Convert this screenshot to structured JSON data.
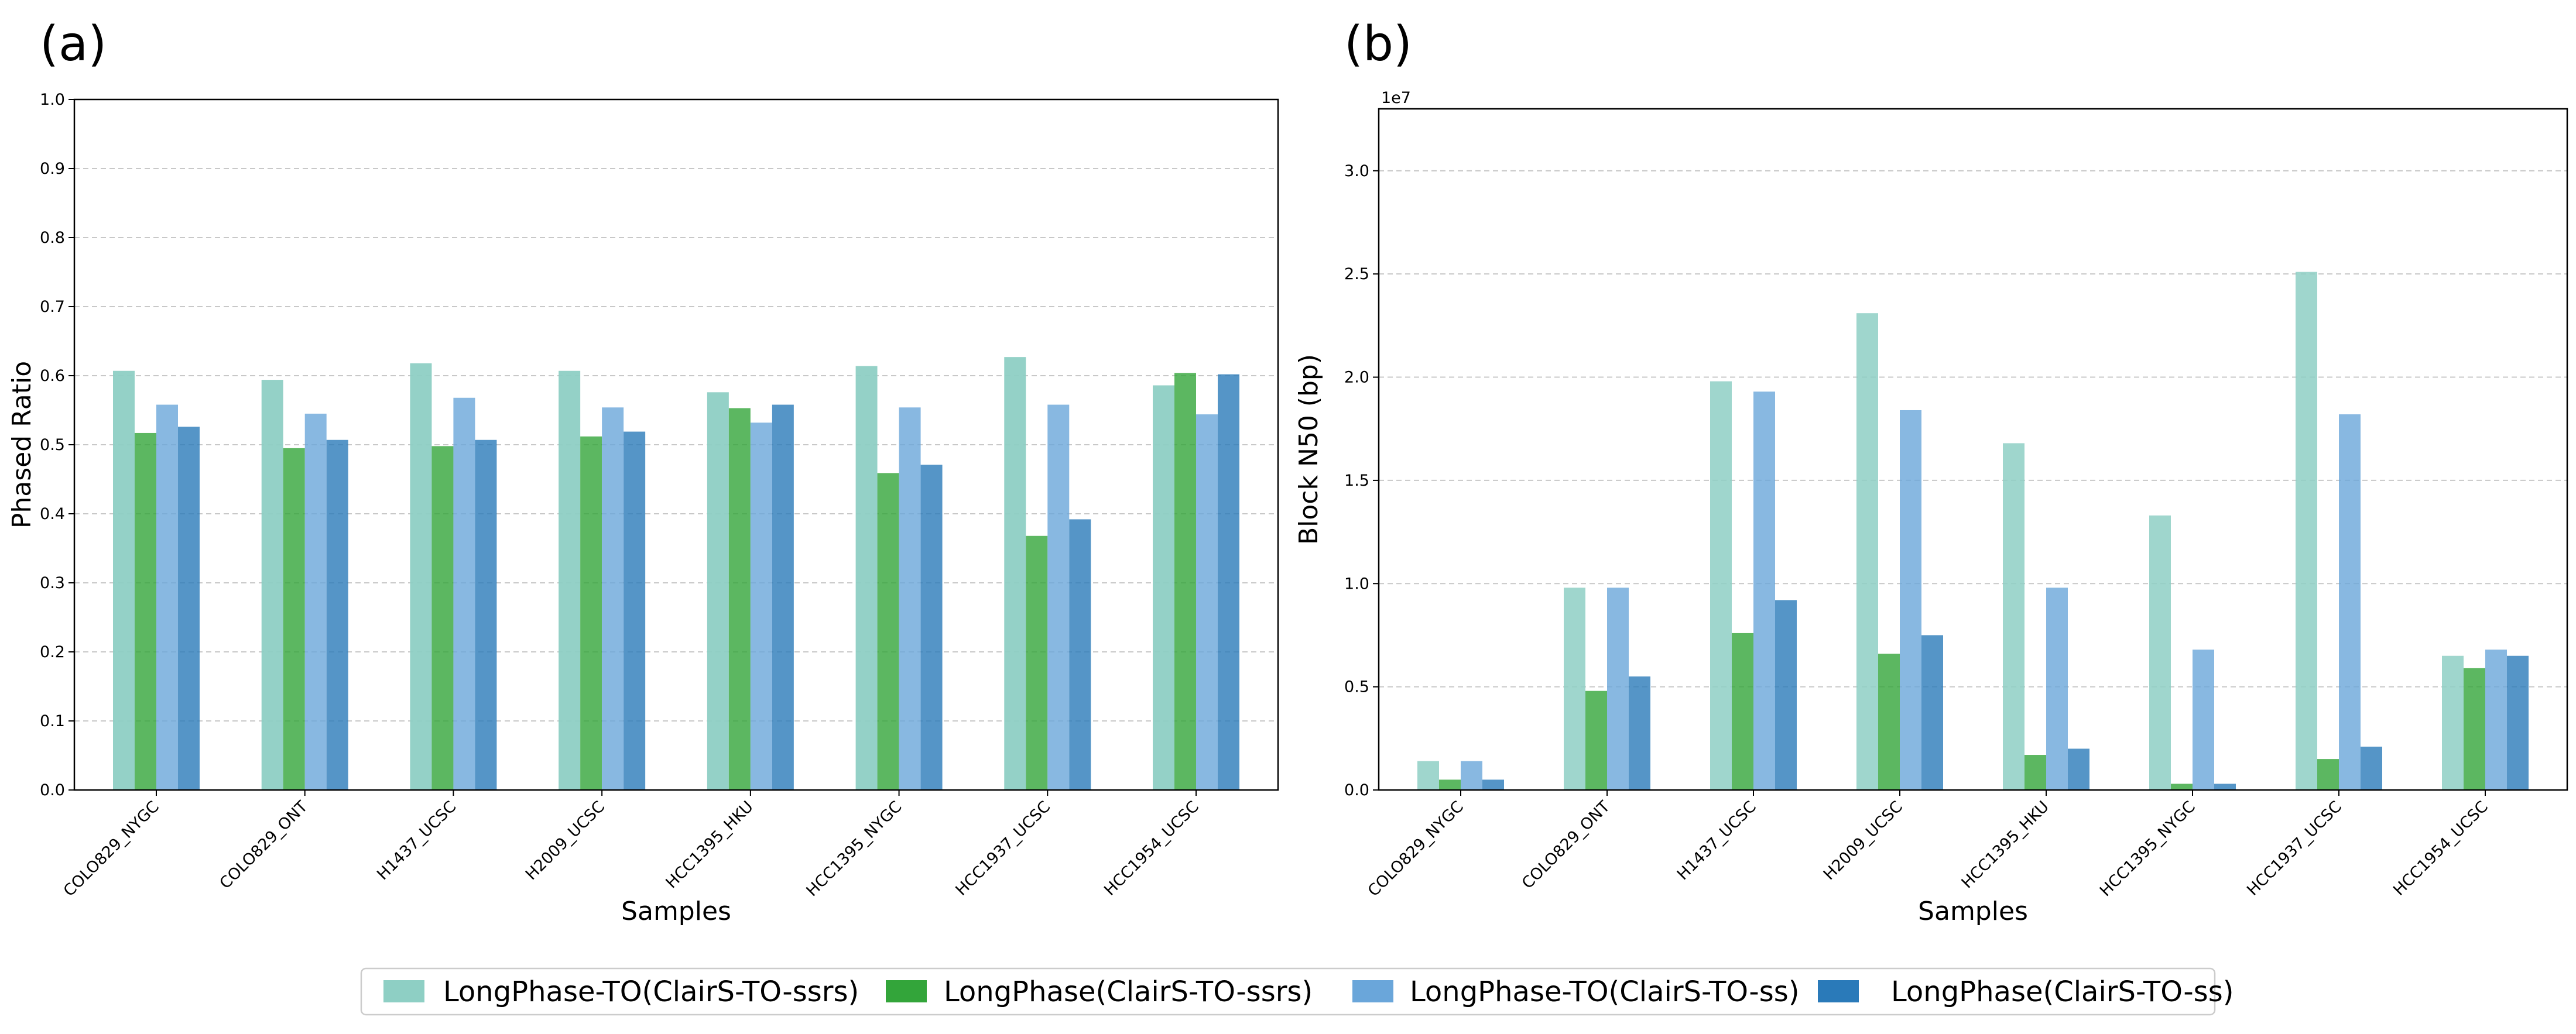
{
  "colors": [
    "#8ecfc4",
    "#33a53a",
    "#6aa6da",
    "#2a7ab9"
  ],
  "legend": {
    "placement": "bottom-center",
    "entries": [
      "LongPhase-TO(ClairS-TO-ssrs)",
      "LongPhase(ClairS-TO-ssrs)",
      "LongPhase-TO(ClairS-TO-ss)",
      "LongPhase(ClairS-TO-ss)"
    ]
  },
  "chart_data": [
    {
      "type": "bar",
      "panel": "(a)",
      "title": "",
      "xlabel": "Samples",
      "ylabel": "Phased Ratio",
      "ylim": [
        0,
        1.0
      ],
      "yticks": [
        0.0,
        0.1,
        0.2,
        0.3,
        0.4,
        0.5,
        0.6,
        0.7,
        0.8,
        0.9,
        1.0
      ],
      "ytick_labels": [
        "0.0",
        "0.1",
        "0.2",
        "0.3",
        "0.4",
        "0.5",
        "0.6",
        "0.7",
        "0.8",
        "0.9",
        "1.0"
      ],
      "grid": "y-dashed",
      "categories": [
        "COLO829_NYGC",
        "COLO829_ONT",
        "H1437_UCSC",
        "H2009_UCSC",
        "HCC1395_HKU",
        "HCC1395_NYGC",
        "HCC1937_UCSC",
        "HCC1954_UCSC"
      ],
      "series": [
        {
          "name": "LongPhase-TO(ClairS-TO-ssrs)",
          "values": [
            0.607,
            0.594,
            0.618,
            0.607,
            0.576,
            0.614,
            0.627,
            0.586
          ]
        },
        {
          "name": "LongPhase(ClairS-TO-ssrs)",
          "values": [
            0.517,
            0.495,
            0.498,
            0.512,
            0.553,
            0.459,
            0.368,
            0.604
          ]
        },
        {
          "name": "LongPhase-TO(ClairS-TO-ss)",
          "values": [
            0.558,
            0.545,
            0.568,
            0.554,
            0.532,
            0.554,
            0.558,
            0.544
          ]
        },
        {
          "name": "LongPhase(ClairS-TO-ss)",
          "values": [
            0.526,
            0.507,
            0.507,
            0.519,
            0.558,
            0.471,
            0.392,
            0.602
          ]
        }
      ]
    },
    {
      "type": "bar",
      "panel": "(b)",
      "title": "",
      "xlabel": "Samples",
      "ylabel": "Block N50 (bp)",
      "offset_label": "1e7",
      "ylim": [
        0,
        3.3
      ],
      "yticks": [
        0.0,
        0.5,
        1.0,
        1.5,
        2.0,
        2.5,
        3.0
      ],
      "ytick_labels": [
        "0.0",
        "0.5",
        "1.0",
        "1.5",
        "2.0",
        "2.5",
        "3.0"
      ],
      "grid": "y-dashed",
      "categories": [
        "COLO829_NYGC",
        "COLO829_ONT",
        "H1437_UCSC",
        "H2009_UCSC",
        "HCC1395_HKU",
        "HCC1395_NYGC",
        "HCC1937_UCSC",
        "HCC1954_UCSC"
      ],
      "series": [
        {
          "name": "LongPhase-TO(ClairS-TO-ssrs)",
          "values": [
            0.14,
            0.98,
            1.98,
            2.31,
            1.68,
            1.33,
            2.51,
            0.65
          ]
        },
        {
          "name": "LongPhase(ClairS-TO-ssrs)",
          "values": [
            0.05,
            0.48,
            0.76,
            0.66,
            0.17,
            0.03,
            0.15,
            0.59
          ]
        },
        {
          "name": "LongPhase-TO(ClairS-TO-ss)",
          "values": [
            0.14,
            0.98,
            1.93,
            1.84,
            0.98,
            0.68,
            1.82,
            0.68
          ]
        },
        {
          "name": "LongPhase(ClairS-TO-ss)",
          "values": [
            0.05,
            0.55,
            0.92,
            0.75,
            0.2,
            0.03,
            0.21,
            0.65
          ]
        }
      ]
    }
  ]
}
